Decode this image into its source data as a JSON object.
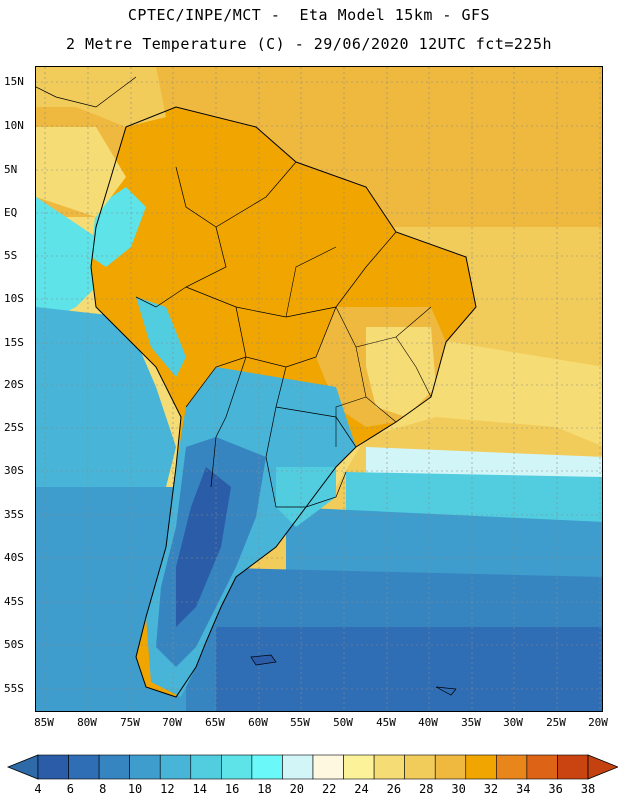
{
  "title": {
    "line1": "CPTEC/INPE/MCT -  Eta Model 15km - GFS",
    "line2": "2 Metre Temperature (C) - 29/06/2020 12UTC fct=225h"
  },
  "map": {
    "latitude_labels": [
      "15N",
      "10N",
      "5N",
      "EQ",
      "5S",
      "10S",
      "15S",
      "20S",
      "25S",
      "30S",
      "35S",
      "40S",
      "45S",
      "50S",
      "55S"
    ],
    "longitude_labels": [
      "85W",
      "80W",
      "75W",
      "70W",
      "65W",
      "60W",
      "55W",
      "50W",
      "45W",
      "40W",
      "35W",
      "30W",
      "25W",
      "20W"
    ]
  },
  "colorbar": {
    "labels": [
      "4",
      "6",
      "8",
      "10",
      "12",
      "14",
      "16",
      "18",
      "20",
      "22",
      "24",
      "26",
      "28",
      "30",
      "32",
      "34",
      "36",
      "38"
    ],
    "colors": [
      "#2a5ca8",
      "#2f6db4",
      "#3785c0",
      "#3e9dcc",
      "#48b4d8",
      "#52cde0",
      "#5de3e8",
      "#6af8f8",
      "#d2f6f8",
      "#fef8e0",
      "#fcf29a",
      "#f6dc74",
      "#f2cc5a",
      "#eeb93e",
      "#f0a500",
      "#e8861c",
      "#dd6416",
      "#c94410"
    ],
    "under_color": "#2e6aa8",
    "over_color": "#c34210"
  }
}
